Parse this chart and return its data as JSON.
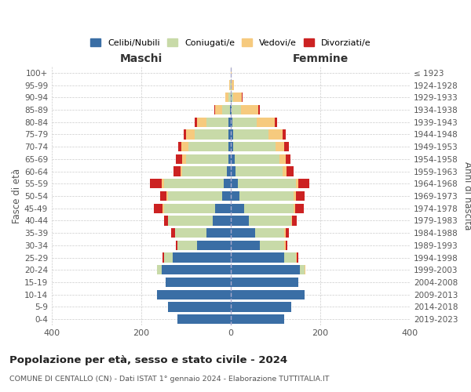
{
  "age_groups": [
    "0-4",
    "5-9",
    "10-14",
    "15-19",
    "20-24",
    "25-29",
    "30-34",
    "35-39",
    "40-44",
    "45-49",
    "50-54",
    "55-59",
    "60-64",
    "65-69",
    "70-74",
    "75-79",
    "80-84",
    "85-89",
    "90-94",
    "95-99",
    "100+"
  ],
  "birth_years": [
    "2019-2023",
    "2014-2018",
    "2009-2013",
    "2004-2008",
    "1999-2003",
    "1994-1998",
    "1989-1993",
    "1984-1988",
    "1979-1983",
    "1974-1978",
    "1969-1973",
    "1964-1968",
    "1959-1963",
    "1954-1958",
    "1949-1953",
    "1944-1948",
    "1939-1943",
    "1934-1938",
    "1929-1933",
    "1924-1928",
    "≤ 1923"
  ],
  "colors": {
    "celibi": "#3A6EA5",
    "coniugati": "#C8DAA8",
    "vedovi": "#F6CA7E",
    "divorziati": "#CC2222"
  },
  "males": {
    "celibi": [
      120,
      140,
      165,
      145,
      155,
      130,
      75,
      55,
      40,
      35,
      20,
      15,
      8,
      5,
      5,
      5,
      5,
      2,
      0,
      0,
      0
    ],
    "coniugati": [
      0,
      0,
      0,
      0,
      10,
      20,
      45,
      70,
      100,
      115,
      120,
      135,
      100,
      95,
      90,
      75,
      50,
      18,
      5,
      1,
      0
    ],
    "vedovi": [
      0,
      0,
      0,
      0,
      0,
      0,
      0,
      0,
      0,
      2,
      3,
      5,
      5,
      8,
      15,
      20,
      20,
      15,
      8,
      2,
      0
    ],
    "divorziati": [
      0,
      0,
      0,
      0,
      0,
      2,
      3,
      8,
      10,
      20,
      15,
      25,
      15,
      15,
      8,
      5,
      5,
      2,
      0,
      0,
      0
    ]
  },
  "females": {
    "celibi": [
      120,
      135,
      165,
      150,
      155,
      120,
      65,
      55,
      40,
      30,
      20,
      15,
      10,
      8,
      5,
      5,
      3,
      2,
      1,
      0,
      0
    ],
    "coniugati": [
      0,
      0,
      0,
      0,
      10,
      25,
      55,
      65,
      95,
      110,
      120,
      130,
      105,
      100,
      95,
      80,
      55,
      20,
      5,
      2,
      0
    ],
    "vedovi": [
      0,
      0,
      0,
      0,
      2,
      2,
      2,
      2,
      2,
      3,
      5,
      5,
      10,
      15,
      20,
      30,
      40,
      40,
      18,
      5,
      1
    ],
    "divorziati": [
      0,
      0,
      0,
      0,
      0,
      3,
      5,
      8,
      10,
      20,
      20,
      25,
      15,
      10,
      10,
      8,
      5,
      3,
      2,
      0,
      0
    ]
  },
  "title": "Popolazione per età, sesso e stato civile - 2024",
  "subtitle": "COMUNE DI CENTALLO (CN) - Dati ISTAT 1° gennaio 2024 - Elaborazione TUTTITALIA.IT",
  "xlabel_left": "Maschi",
  "xlabel_right": "Femmine",
  "ylabel_left": "Fasce di età",
  "ylabel_right": "Anni di nascita",
  "xlim": 400,
  "bg_color": "#FFFFFF",
  "grid_color": "#CCCCCC",
  "legend_labels": [
    "Celibi/Nubili",
    "Coniugati/e",
    "Vedovi/e",
    "Divorziati/e"
  ]
}
